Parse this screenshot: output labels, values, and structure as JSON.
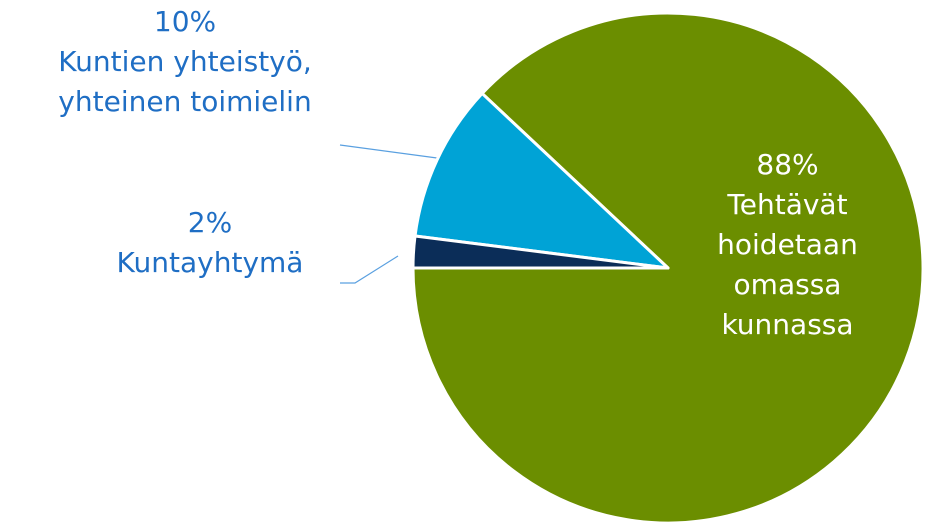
{
  "chart_data": {
    "type": "pie",
    "categories": [
      "Tehtävät hoidetaan omassa kunnassa",
      "Kuntien yhteistyö, yhteinen toimielin",
      "Kuntayhtymä"
    ],
    "values": [
      88,
      10,
      2
    ],
    "value_labels": [
      "88%",
      "10%",
      "2%"
    ],
    "colors": [
      "#6b8e00",
      "#00a3d6",
      "#0b2d58"
    ]
  }
}
